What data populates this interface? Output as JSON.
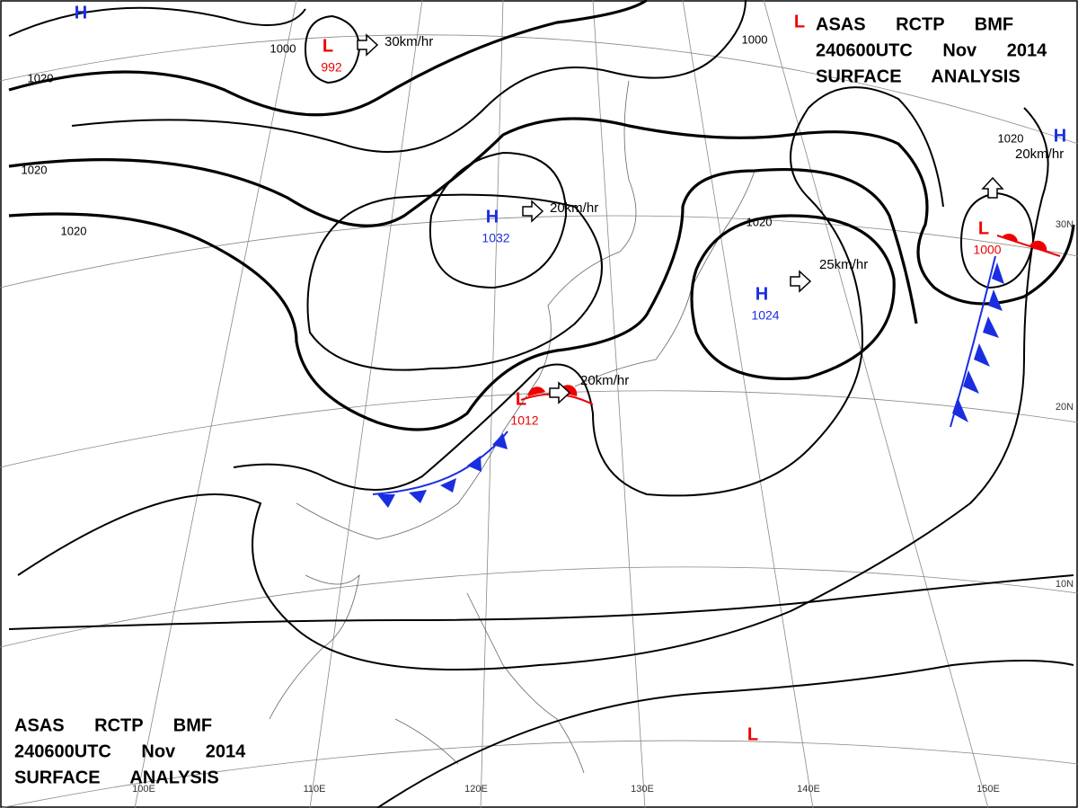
{
  "header_top": {
    "lines": [
      "ASAS RCTP BMF",
      "240600UTC Nov 2014",
      "SURFACE ANALYSIS"
    ]
  },
  "header_bottom": {
    "lines": [
      "ASAS RCTP BMF",
      "240600UTC Nov 2014",
      "SURFACE ANALYSIS"
    ]
  },
  "pressure_centers": [
    {
      "symbol": "H",
      "value": "1032"
    },
    {
      "symbol": "H",
      "value": "1024"
    },
    {
      "symbol": "L",
      "value": "992"
    },
    {
      "symbol": "L",
      "value": "1012"
    },
    {
      "symbol": "L",
      "value": "1000"
    },
    {
      "symbol": "H"
    },
    {
      "symbol": "H"
    },
    {
      "symbol": "L"
    },
    {
      "symbol": "L"
    }
  ],
  "isobar_labels": [
    "1020",
    "1020",
    "1020",
    "1020",
    "1000",
    "1000",
    "1020"
  ],
  "motion_labels": [
    "30km/hr",
    "20km/hr",
    "25km/hr",
    "20km/hr",
    "20km/hr"
  ],
  "longitude_labels": [
    "100E",
    "110E",
    "120E",
    "130E",
    "140E",
    "150E"
  ],
  "latitude_labels": [
    "30N",
    "20N",
    "10N"
  ]
}
